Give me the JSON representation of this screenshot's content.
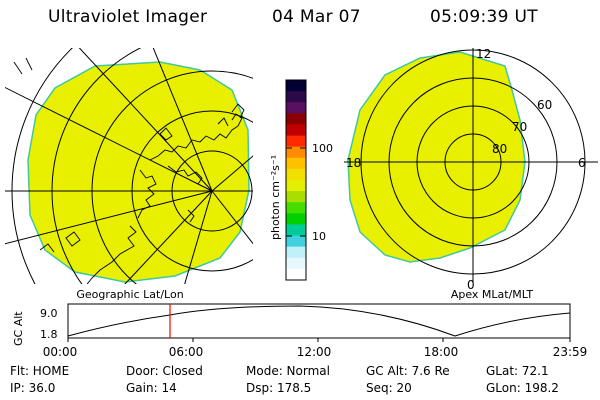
{
  "header": {
    "instrument": "Ultraviolet Imager",
    "date": "04 Mar 07",
    "time": "05:09:39 UT"
  },
  "colorbar": {
    "unit_label": "photon cm⁻²s⁻¹",
    "tick_labels": [
      "100",
      "10"
    ],
    "colors": [
      "#000033",
      "#2b0a4a",
      "#5a1060",
      "#8a0000",
      "#c00000",
      "#ff2a00",
      "#ff8c00",
      "#ffc000",
      "#f0e000",
      "#e4ee00",
      "#aadd00",
      "#44dd00",
      "#00d000",
      "#00cc99",
      "#40d0e0",
      "#c0f0f8",
      "#e8f8ff",
      "#ffffff"
    ]
  },
  "left_panel": {
    "caption": "Geographic Lat/Lon",
    "fill_color": "#e8f000"
  },
  "right_panel": {
    "caption": "Apex MLat/MLT",
    "fill_color": "#e8f000",
    "mlt_labels": {
      "top": "12",
      "left": "18",
      "right": "6",
      "bottom": "0"
    },
    "lat_labels": [
      "60",
      "70",
      "80"
    ]
  },
  "altitude_plot": {
    "ylabel": "GC Alt",
    "y_ticks": [
      "9.0",
      "1.8"
    ],
    "x_ticks": [
      "00:00",
      "06:00",
      "12:00",
      "18:00",
      "23:59"
    ],
    "current_time_marker_color": "#ff0000"
  },
  "status": {
    "flt": "Flt: HOME",
    "ip": "IP: 36.0",
    "door": "Door: Closed",
    "gain": "Gain: 14",
    "mode": "Mode: Normal",
    "dsp": "Dsp:  178.5",
    "gc_alt": "GC Alt: 7.6 Re",
    "seq": "Seq: 20",
    "glat": "GLat:  72.1",
    "glon": "GLon: 198.2"
  }
}
